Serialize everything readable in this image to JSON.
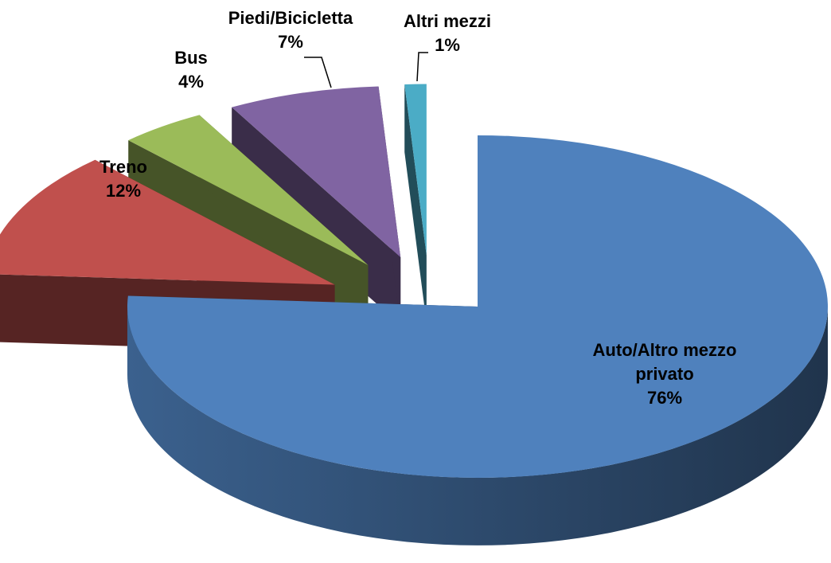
{
  "chart_data": {
    "type": "pie",
    "categories": [
      "Auto/Altro mezzo privato",
      "Treno",
      "Bus",
      "Piedi/Bicicletta",
      "Altri mezzi"
    ],
    "values": [
      76,
      12,
      4,
      7,
      1
    ],
    "value_labels": [
      "76%",
      "12%",
      "4%",
      "7%",
      "1%"
    ],
    "colors": [
      "#4f81bd",
      "#c0504d",
      "#9bbb59",
      "#8064a2",
      "#4bacc6"
    ]
  }
}
